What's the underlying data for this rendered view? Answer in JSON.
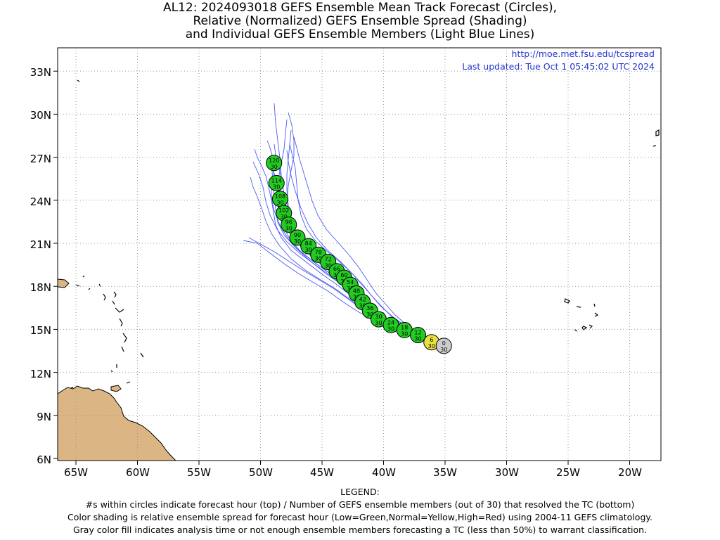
{
  "title": {
    "line1": "AL12: 2024093018 GEFS Ensemble Mean Track Forecast (Circles),",
    "line2": "Relative (Normalized) GEFS Ensemble Spread (Shading)",
    "line3": "and Individual GEFS Ensemble Members (Light Blue Lines)"
  },
  "source_url": "http://moe.met.fsu.edu/tcspread",
  "last_updated": "Last updated: Tue Oct 1 05:45:02 UTC 2024",
  "axes": {
    "lat_labels": [
      "33N",
      "30N",
      "27N",
      "24N",
      "21N",
      "18N",
      "15N",
      "12N",
      "9N",
      "6N"
    ],
    "lon_labels": [
      "65W",
      "60W",
      "55W",
      "50W",
      "45W",
      "40W",
      "35W",
      "30W",
      "25W",
      "20W"
    ]
  },
  "colors": {
    "land": "#dcb585",
    "member_lines": "#4c5bf0",
    "spread_low": "#22cc22",
    "spread_normal": "#e8e040",
    "analysis": "#cccccc",
    "header_text": "#2233cc"
  },
  "track_points": [
    {
      "hour": "0",
      "members": "30",
      "lon": -35.1,
      "lat": 13.85,
      "shade": "analysis"
    },
    {
      "hour": "6",
      "members": "30",
      "lon": -36.1,
      "lat": 14.1,
      "shade": "normal"
    },
    {
      "hour": "12",
      "members": "30",
      "lon": -37.2,
      "lat": 14.6,
      "shade": "low"
    },
    {
      "hour": "18",
      "members": "30",
      "lon": -38.3,
      "lat": 14.95,
      "shade": "low"
    },
    {
      "hour": "24",
      "members": "30",
      "lon": -39.4,
      "lat": 15.3,
      "shade": "low"
    },
    {
      "hour": "30",
      "members": "30",
      "lon": -40.4,
      "lat": 15.7,
      "shade": "low"
    },
    {
      "hour": "36",
      "members": "30",
      "lon": -41.1,
      "lat": 16.3,
      "shade": "low"
    },
    {
      "hour": "42",
      "members": "30",
      "lon": -41.7,
      "lat": 16.9,
      "shade": "low"
    },
    {
      "hour": "48",
      "members": "30",
      "lon": -42.2,
      "lat": 17.5,
      "shade": "low"
    },
    {
      "hour": "54",
      "members": "30",
      "lon": -42.7,
      "lat": 18.1,
      "shade": "low"
    },
    {
      "hour": "60",
      "members": "30",
      "lon": -43.2,
      "lat": 18.6,
      "shade": "low"
    },
    {
      "hour": "66",
      "members": "30",
      "lon": -43.8,
      "lat": 19.05,
      "shade": "low"
    },
    {
      "hour": "72",
      "members": "30",
      "lon": -44.5,
      "lat": 19.7,
      "shade": "low"
    },
    {
      "hour": "78",
      "members": "30",
      "lon": -45.3,
      "lat": 20.2,
      "shade": "low"
    },
    {
      "hour": "84",
      "members": "30",
      "lon": -46.1,
      "lat": 20.8,
      "shade": "low"
    },
    {
      "hour": "90",
      "members": "30",
      "lon": -47.0,
      "lat": 21.4,
      "shade": "low"
    },
    {
      "hour": "96",
      "members": "30",
      "lon": -47.7,
      "lat": 22.3,
      "shade": "low"
    },
    {
      "hour": "102",
      "members": "30",
      "lon": -48.1,
      "lat": 23.1,
      "shade": "low"
    },
    {
      "hour": "108",
      "members": "30",
      "lon": -48.4,
      "lat": 24.1,
      "shade": "low"
    },
    {
      "hour": "114",
      "members": "30",
      "lon": -48.7,
      "lat": 25.2,
      "shade": "low"
    },
    {
      "hour": "120",
      "members": "30",
      "lon": -48.9,
      "lat": 26.6,
      "shade": "low"
    }
  ],
  "legend": {
    "title": "LEGEND:",
    "line1": "#s within circles indicate forecast hour (top) / Number of GEFS ensemble members (out of 30) that resolved the TC (bottom)",
    "line2": "Color shading is relative ensemble spread for forecast hour (Low=Green,Normal=Yellow,High=Red) using 2004-11 GEFS climatology.",
    "line3": "Gray color fill indicates analysis time or not enough ensemble members forecasting a TC (less than 50%) to warrant classification."
  }
}
